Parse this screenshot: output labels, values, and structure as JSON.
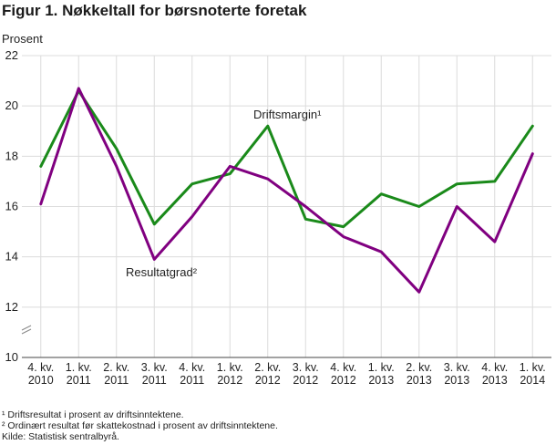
{
  "title": "Figur 1. Nøkkeltall for børsnoterte foretak",
  "footnotes": [
    "¹ Driftsresultat i prosent av driftsinntektene.",
    "² Ordinært resultat før skattekostnad i prosent av driftsinntektene.",
    "Kilde: Statistisk sentralbyrå."
  ],
  "chart_data": {
    "type": "line",
    "ylabel": "Prosent",
    "ylim": [
      10,
      22
    ],
    "yticks": [
      10,
      12,
      14,
      16,
      18,
      20,
      22
    ],
    "grid": true,
    "categories": [
      [
        "4. kv.",
        "2010"
      ],
      [
        "1. kv.",
        "2011"
      ],
      [
        "2. kv.",
        "2011"
      ],
      [
        "3. kv.",
        "2011"
      ],
      [
        "4. kv.",
        "2011"
      ],
      [
        "1. kv.",
        "2012"
      ],
      [
        "2. kv.",
        "2012"
      ],
      [
        "3. kv.",
        "2012"
      ],
      [
        "4. kv.",
        "2012"
      ],
      [
        "1. kv.",
        "2013"
      ],
      [
        "2. kv.",
        "2013"
      ],
      [
        "3. kv.",
        "2013"
      ],
      [
        "4. kv.",
        "2013"
      ],
      [
        "1. kv.",
        "2014"
      ]
    ],
    "series": [
      {
        "name": "Driftsmargin¹",
        "color": "#1a8a1a",
        "values": [
          17.6,
          20.6,
          18.3,
          15.3,
          16.9,
          17.3,
          19.2,
          15.5,
          15.2,
          16.5,
          16.0,
          16.9,
          17.0,
          19.2
        ]
      },
      {
        "name": "Resultatgrad²",
        "color": "#800080",
        "values": [
          16.1,
          20.7,
          17.6,
          13.9,
          15.6,
          17.6,
          17.1,
          16.0,
          14.8,
          14.2,
          12.6,
          16.0,
          14.6,
          18.1
        ]
      }
    ]
  }
}
